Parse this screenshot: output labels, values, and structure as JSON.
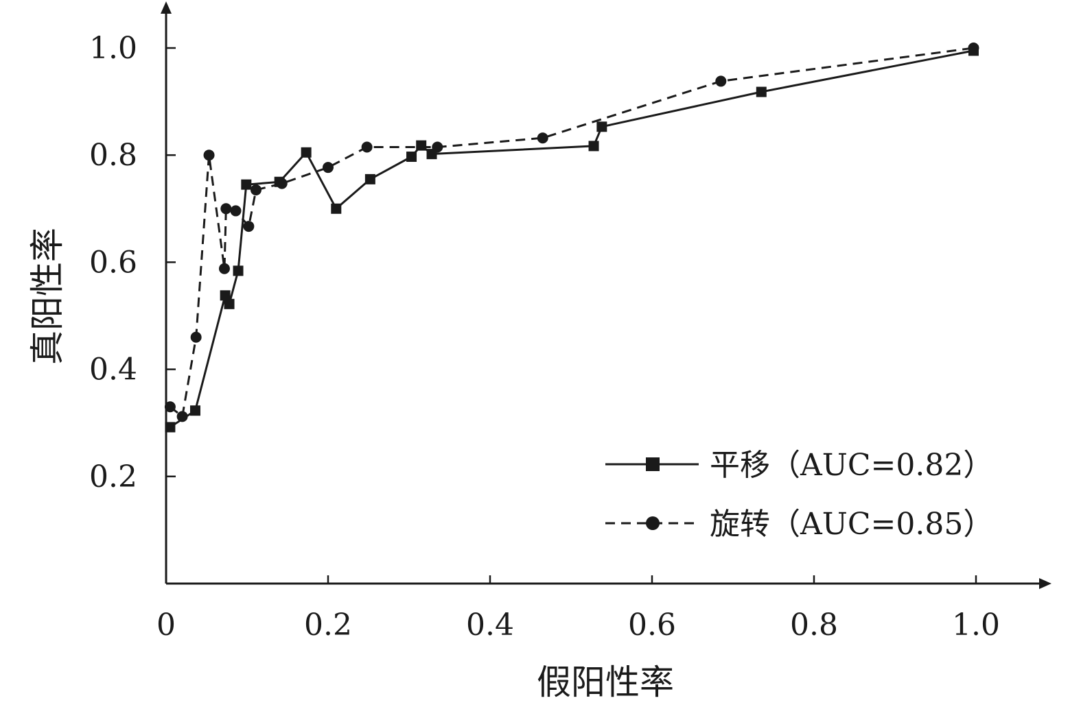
{
  "chart_data": {
    "type": "line",
    "xlabel": "假阳性率",
    "ylabel": "真阳性率",
    "xlim": [
      0,
      1.0
    ],
    "ylim": [
      0,
      1.0
    ],
    "x_ticks": [
      "0",
      "0.2",
      "0.4",
      "0.6",
      "0.8",
      "1.0"
    ],
    "y_ticks": [
      "0.2",
      "0.4",
      "0.6",
      "0.8",
      "1.0"
    ],
    "grid": false,
    "legend_position": "bottom-right",
    "series": [
      {
        "name": "平移（AUC=0.82）",
        "line_style": "solid",
        "marker": "square",
        "x": [
          0.005,
          0.036,
          0.073,
          0.078,
          0.089,
          0.099,
          0.14,
          0.173,
          0.21,
          0.252,
          0.303,
          0.315,
          0.328,
          0.528,
          0.538,
          0.735,
          0.997
        ],
        "y": [
          0.292,
          0.323,
          0.538,
          0.522,
          0.584,
          0.745,
          0.75,
          0.805,
          0.7,
          0.755,
          0.797,
          0.818,
          0.802,
          0.817,
          0.853,
          0.918,
          0.995
        ]
      },
      {
        "name": "旋转（AUC=0.85）",
        "line_style": "dashed",
        "marker": "circle",
        "x": [
          0.005,
          0.02,
          0.037,
          0.053,
          0.072,
          0.074,
          0.086,
          0.102,
          0.111,
          0.143,
          0.2,
          0.248,
          0.335,
          0.465,
          0.685,
          0.997
        ],
        "y": [
          0.33,
          0.312,
          0.46,
          0.8,
          0.588,
          0.7,
          0.696,
          0.667,
          0.735,
          0.747,
          0.777,
          0.815,
          0.815,
          0.832,
          0.938,
          1.0
        ]
      }
    ]
  }
}
